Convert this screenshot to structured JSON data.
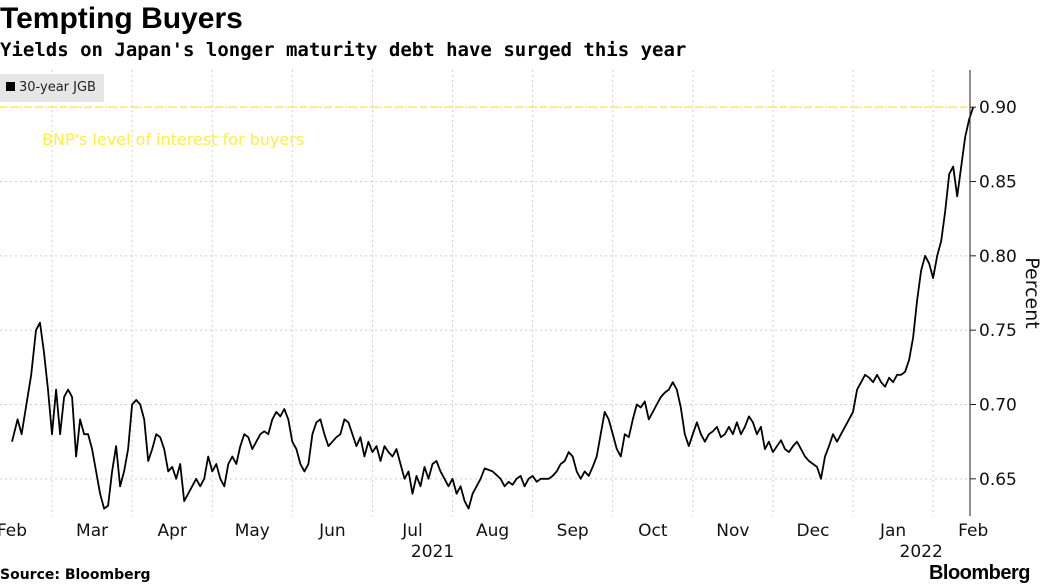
{
  "title": "Tempting Buyers",
  "subtitle": "Yields on Japan's longer maturity debt have surged this year",
  "source": "Source: Bloomberg",
  "brand": "Bloomberg",
  "chart_data": {
    "type": "line",
    "ylabel": "Percent",
    "ylim": [
      0.625,
      0.925
    ],
    "yticks": [
      0.65,
      0.7,
      0.75,
      0.8,
      0.85,
      0.9
    ],
    "ytick_labels": [
      "0.65",
      "0.70",
      "0.75",
      "0.80",
      "0.85",
      "0.90"
    ],
    "x_months": [
      {
        "label": "Feb",
        "pos": 0
      },
      {
        "label": "Mar",
        "pos": 1
      },
      {
        "label": "Apr",
        "pos": 2
      },
      {
        "label": "May",
        "pos": 3
      },
      {
        "label": "Jun",
        "pos": 4
      },
      {
        "label": "Jul",
        "pos": 5
      },
      {
        "label": "Aug",
        "pos": 6
      },
      {
        "label": "Sep",
        "pos": 7
      },
      {
        "label": "Oct",
        "pos": 8
      },
      {
        "label": "Nov",
        "pos": 9
      },
      {
        "label": "Dec",
        "pos": 10
      },
      {
        "label": "Jan",
        "pos": 11
      },
      {
        "label": "Feb",
        "pos": 12
      }
    ],
    "year_labels": [
      {
        "label": "2021",
        "pos": 5.25
      },
      {
        "label": "2022",
        "pos": 11.35
      }
    ],
    "xlim": [
      0,
      12.1
    ],
    "series": [
      {
        "name": "30-year JGB",
        "color": "#000000",
        "points": [
          [
            0.0,
            0.675
          ],
          [
            0.07,
            0.69
          ],
          [
            0.12,
            0.68
          ],
          [
            0.18,
            0.7
          ],
          [
            0.24,
            0.72
          ],
          [
            0.3,
            0.75
          ],
          [
            0.35,
            0.755
          ],
          [
            0.4,
            0.735
          ],
          [
            0.45,
            0.71
          ],
          [
            0.5,
            0.68
          ],
          [
            0.55,
            0.71
          ],
          [
            0.6,
            0.68
          ],
          [
            0.65,
            0.705
          ],
          [
            0.7,
            0.71
          ],
          [
            0.75,
            0.705
          ],
          [
            0.8,
            0.665
          ],
          [
            0.85,
            0.69
          ],
          [
            0.9,
            0.68
          ],
          [
            0.95,
            0.68
          ],
          [
            1.0,
            0.67
          ],
          [
            1.05,
            0.655
          ],
          [
            1.1,
            0.64
          ],
          [
            1.15,
            0.63
          ],
          [
            1.2,
            0.632
          ],
          [
            1.25,
            0.655
          ],
          [
            1.3,
            0.672
          ],
          [
            1.35,
            0.645
          ],
          [
            1.4,
            0.655
          ],
          [
            1.45,
            0.67
          ],
          [
            1.5,
            0.7
          ],
          [
            1.55,
            0.703
          ],
          [
            1.6,
            0.7
          ],
          [
            1.65,
            0.69
          ],
          [
            1.7,
            0.662
          ],
          [
            1.75,
            0.67
          ],
          [
            1.8,
            0.68
          ],
          [
            1.85,
            0.678
          ],
          [
            1.9,
            0.67
          ],
          [
            1.95,
            0.655
          ],
          [
            2.0,
            0.658
          ],
          [
            2.05,
            0.65
          ],
          [
            2.1,
            0.66
          ],
          [
            2.15,
            0.635
          ],
          [
            2.2,
            0.64
          ],
          [
            2.3,
            0.65
          ],
          [
            2.35,
            0.645
          ],
          [
            2.4,
            0.65
          ],
          [
            2.45,
            0.665
          ],
          [
            2.5,
            0.655
          ],
          [
            2.55,
            0.66
          ],
          [
            2.6,
            0.65
          ],
          [
            2.65,
            0.645
          ],
          [
            2.7,
            0.66
          ],
          [
            2.75,
            0.665
          ],
          [
            2.8,
            0.66
          ],
          [
            2.85,
            0.672
          ],
          [
            2.9,
            0.68
          ],
          [
            2.95,
            0.678
          ],
          [
            3.0,
            0.67
          ],
          [
            3.05,
            0.675
          ],
          [
            3.1,
            0.68
          ],
          [
            3.15,
            0.682
          ],
          [
            3.2,
            0.68
          ],
          [
            3.25,
            0.69
          ],
          [
            3.3,
            0.695
          ],
          [
            3.35,
            0.692
          ],
          [
            3.4,
            0.697
          ],
          [
            3.45,
            0.69
          ],
          [
            3.5,
            0.675
          ],
          [
            3.55,
            0.67
          ],
          [
            3.6,
            0.66
          ],
          [
            3.65,
            0.655
          ],
          [
            3.7,
            0.66
          ],
          [
            3.75,
            0.68
          ],
          [
            3.8,
            0.688
          ],
          [
            3.85,
            0.69
          ],
          [
            3.9,
            0.68
          ],
          [
            3.95,
            0.672
          ],
          [
            4.0,
            0.675
          ],
          [
            4.05,
            0.678
          ],
          [
            4.1,
            0.68
          ],
          [
            4.15,
            0.69
          ],
          [
            4.2,
            0.688
          ],
          [
            4.25,
            0.68
          ],
          [
            4.3,
            0.672
          ],
          [
            4.35,
            0.678
          ],
          [
            4.4,
            0.665
          ],
          [
            4.45,
            0.675
          ],
          [
            4.5,
            0.668
          ],
          [
            4.55,
            0.672
          ],
          [
            4.6,
            0.662
          ],
          [
            4.65,
            0.672
          ],
          [
            4.7,
            0.668
          ],
          [
            4.75,
            0.665
          ],
          [
            4.8,
            0.67
          ],
          [
            4.85,
            0.66
          ],
          [
            4.9,
            0.65
          ],
          [
            4.95,
            0.655
          ],
          [
            5.0,
            0.64
          ],
          [
            5.05,
            0.652
          ],
          [
            5.1,
            0.645
          ],
          [
            5.15,
            0.658
          ],
          [
            5.2,
            0.65
          ],
          [
            5.25,
            0.66
          ],
          [
            5.3,
            0.662
          ],
          [
            5.35,
            0.655
          ],
          [
            5.4,
            0.65
          ],
          [
            5.45,
            0.645
          ],
          [
            5.5,
            0.65
          ],
          [
            5.55,
            0.64
          ],
          [
            5.6,
            0.645
          ],
          [
            5.65,
            0.635
          ],
          [
            5.7,
            0.63
          ],
          [
            5.75,
            0.64
          ],
          [
            5.8,
            0.645
          ],
          [
            5.85,
            0.65
          ],
          [
            5.9,
            0.657
          ],
          [
            6.0,
            0.655
          ],
          [
            6.1,
            0.65
          ],
          [
            6.15,
            0.645
          ],
          [
            6.2,
            0.648
          ],
          [
            6.25,
            0.646
          ],
          [
            6.3,
            0.65
          ],
          [
            6.35,
            0.652
          ],
          [
            6.4,
            0.645
          ],
          [
            6.45,
            0.65
          ],
          [
            6.5,
            0.652
          ],
          [
            6.55,
            0.648
          ],
          [
            6.6,
            0.65
          ],
          [
            6.7,
            0.65
          ],
          [
            6.75,
            0.652
          ],
          [
            6.8,
            0.655
          ],
          [
            6.85,
            0.66
          ],
          [
            6.9,
            0.662
          ],
          [
            6.95,
            0.668
          ],
          [
            7.0,
            0.665
          ],
          [
            7.05,
            0.655
          ],
          [
            7.1,
            0.65
          ],
          [
            7.15,
            0.655
          ],
          [
            7.2,
            0.652
          ],
          [
            7.25,
            0.658
          ],
          [
            7.3,
            0.665
          ],
          [
            7.35,
            0.68
          ],
          [
            7.4,
            0.695
          ],
          [
            7.45,
            0.69
          ],
          [
            7.5,
            0.68
          ],
          [
            7.55,
            0.67
          ],
          [
            7.6,
            0.665
          ],
          [
            7.65,
            0.68
          ],
          [
            7.7,
            0.678
          ],
          [
            7.75,
            0.69
          ],
          [
            7.8,
            0.7
          ],
          [
            7.85,
            0.698
          ],
          [
            7.9,
            0.702
          ],
          [
            7.95,
            0.69
          ],
          [
            8.0,
            0.695
          ],
          [
            8.05,
            0.7
          ],
          [
            8.1,
            0.705
          ],
          [
            8.15,
            0.708
          ],
          [
            8.2,
            0.71
          ],
          [
            8.25,
            0.715
          ],
          [
            8.3,
            0.71
          ],
          [
            8.35,
            0.698
          ],
          [
            8.4,
            0.68
          ],
          [
            8.45,
            0.672
          ],
          [
            8.5,
            0.68
          ],
          [
            8.55,
            0.688
          ],
          [
            8.6,
            0.68
          ],
          [
            8.65,
            0.675
          ],
          [
            8.7,
            0.68
          ],
          [
            8.75,
            0.682
          ],
          [
            8.8,
            0.685
          ],
          [
            8.85,
            0.678
          ],
          [
            8.9,
            0.68
          ],
          [
            8.95,
            0.685
          ],
          [
            9.0,
            0.68
          ],
          [
            9.05,
            0.688
          ],
          [
            9.1,
            0.68
          ],
          [
            9.15,
            0.685
          ],
          [
            9.2,
            0.692
          ],
          [
            9.25,
            0.688
          ],
          [
            9.3,
            0.68
          ],
          [
            9.35,
            0.685
          ],
          [
            9.4,
            0.67
          ],
          [
            9.45,
            0.675
          ],
          [
            9.5,
            0.668
          ],
          [
            9.55,
            0.672
          ],
          [
            9.6,
            0.676
          ],
          [
            9.65,
            0.67
          ],
          [
            9.7,
            0.668
          ],
          [
            9.75,
            0.672
          ],
          [
            9.8,
            0.675
          ],
          [
            9.85,
            0.67
          ],
          [
            9.9,
            0.665
          ],
          [
            9.95,
            0.662
          ],
          [
            10.0,
            0.66
          ],
          [
            10.05,
            0.658
          ],
          [
            10.1,
            0.65
          ],
          [
            10.15,
            0.665
          ],
          [
            10.2,
            0.672
          ],
          [
            10.25,
            0.68
          ],
          [
            10.3,
            0.675
          ],
          [
            10.35,
            0.68
          ],
          [
            10.4,
            0.685
          ],
          [
            10.45,
            0.69
          ],
          [
            10.5,
            0.695
          ],
          [
            10.55,
            0.71
          ],
          [
            10.6,
            0.715
          ],
          [
            10.65,
            0.72
          ],
          [
            10.7,
            0.718
          ],
          [
            10.75,
            0.715
          ],
          [
            10.8,
            0.72
          ],
          [
            10.85,
            0.715
          ],
          [
            10.9,
            0.712
          ],
          [
            10.95,
            0.718
          ],
          [
            11.0,
            0.715
          ],
          [
            11.05,
            0.72
          ],
          [
            11.1,
            0.72
          ],
          [
            11.15,
            0.722
          ],
          [
            11.2,
            0.73
          ],
          [
            11.25,
            0.745
          ],
          [
            11.3,
            0.77
          ],
          [
            11.35,
            0.79
          ],
          [
            11.4,
            0.8
          ],
          [
            11.45,
            0.795
          ],
          [
            11.5,
            0.785
          ],
          [
            11.55,
            0.8
          ],
          [
            11.6,
            0.81
          ],
          [
            11.65,
            0.83
          ],
          [
            11.7,
            0.855
          ],
          [
            11.75,
            0.86
          ],
          [
            11.8,
            0.84
          ],
          [
            11.85,
            0.86
          ],
          [
            11.9,
            0.88
          ],
          [
            11.95,
            0.892
          ],
          [
            12.0,
            0.9
          ]
        ]
      }
    ],
    "reference_line": {
      "value": 0.9,
      "color": "#ffee44",
      "label": "BNP's level of interest for buyers"
    },
    "legend": "top-left",
    "grid": true
  }
}
